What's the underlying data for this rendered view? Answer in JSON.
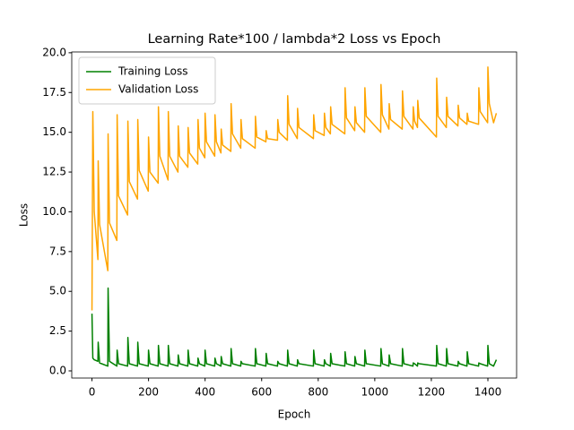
{
  "chart_data": {
    "type": "line",
    "title": "Learning Rate*100 / lambda*2 Loss vs Epoch",
    "x_label": "Epoch",
    "y_label": "Loss",
    "x": [
      0,
      3,
      8,
      21,
      22,
      27,
      56,
      57,
      62,
      88,
      89,
      94,
      126,
      127,
      132,
      161,
      162,
      167,
      199,
      200,
      205,
      234,
      235,
      240,
      269,
      270,
      275,
      304,
      305,
      310,
      339,
      340,
      345,
      374,
      375,
      380,
      399,
      400,
      405,
      434,
      435,
      440,
      456,
      457,
      462,
      491,
      492,
      497,
      526,
      527,
      532,
      577,
      578,
      583,
      615,
      616,
      621,
      656,
      657,
      662,
      691,
      692,
      697,
      726,
      727,
      732,
      783,
      784,
      789,
      821,
      822,
      827,
      843,
      844,
      849,
      894,
      895,
      900,
      929,
      930,
      935,
      964,
      965,
      970,
      1021,
      1022,
      1027,
      1050,
      1051,
      1056,
      1097,
      1098,
      1103,
      1135,
      1136,
      1141,
      1151,
      1152,
      1157,
      1218,
      1219,
      1224,
      1253,
      1254,
      1259,
      1294,
      1295,
      1300,
      1326,
      1327,
      1332,
      1367,
      1368,
      1373,
      1399,
      1400,
      1405,
      1420,
      1430
    ],
    "series": [
      {
        "name": "Training Loss",
        "color": "#008000",
        "values": [
          3.6,
          0.8,
          0.7,
          0.6,
          1.8,
          0.5,
          0.3,
          5.2,
          0.6,
          0.3,
          1.3,
          0.45,
          0.3,
          2.1,
          0.45,
          0.3,
          1.8,
          0.45,
          0.3,
          1.3,
          0.45,
          0.3,
          1.6,
          0.45,
          0.3,
          1.6,
          0.45,
          0.3,
          1.0,
          0.45,
          0.3,
          1.3,
          0.45,
          0.3,
          0.8,
          0.45,
          0.3,
          1.3,
          0.45,
          0.3,
          0.8,
          0.45,
          0.3,
          0.9,
          0.45,
          0.3,
          1.4,
          0.45,
          0.3,
          0.6,
          0.45,
          0.3,
          1.4,
          0.45,
          0.3,
          1.1,
          0.45,
          0.3,
          0.6,
          0.45,
          0.3,
          1.3,
          0.45,
          0.3,
          0.7,
          0.45,
          0.3,
          1.3,
          0.45,
          0.3,
          0.7,
          0.45,
          0.3,
          1.1,
          0.45,
          0.3,
          1.2,
          0.45,
          0.3,
          0.9,
          0.45,
          0.3,
          1.3,
          0.45,
          0.3,
          1.4,
          0.45,
          0.3,
          1.0,
          0.45,
          0.3,
          1.4,
          0.45,
          0.3,
          0.5,
          0.45,
          0.3,
          0.5,
          0.45,
          0.3,
          1.6,
          0.45,
          0.3,
          1.4,
          0.45,
          0.3,
          0.6,
          0.45,
          0.3,
          1.2,
          0.45,
          0.3,
          0.5,
          0.45,
          0.3,
          1.6,
          0.45,
          0.3,
          0.7
        ]
      },
      {
        "name": "Validation Loss",
        "color": "#ffa500",
        "values": [
          3.8,
          16.3,
          10.0,
          7.0,
          13.2,
          9.2,
          6.3,
          14.9,
          9.3,
          8.2,
          16.1,
          11.0,
          9.8,
          15.7,
          11.9,
          10.8,
          15.8,
          12.6,
          11.3,
          14.7,
          12.5,
          11.8,
          16.6,
          13.5,
          12.0,
          16.3,
          13.5,
          12.5,
          15.4,
          13.5,
          12.8,
          15.3,
          13.7,
          13.0,
          15.8,
          14.0,
          13.4,
          16.2,
          14.4,
          13.5,
          16.1,
          14.4,
          13.7,
          15.2,
          14.2,
          13.8,
          16.8,
          14.9,
          14.0,
          15.8,
          14.6,
          14.0,
          16.0,
          14.7,
          14.4,
          15.1,
          14.6,
          14.5,
          15.8,
          15.0,
          14.5,
          17.3,
          15.5,
          14.6,
          16.5,
          15.3,
          14.6,
          16.1,
          15.1,
          14.8,
          16.2,
          15.3,
          14.9,
          16.6,
          15.5,
          14.9,
          17.8,
          15.9,
          15.1,
          16.6,
          15.6,
          15.0,
          17.8,
          16.0,
          15.0,
          18.0,
          16.1,
          15.2,
          16.8,
          15.8,
          15.2,
          17.6,
          16.0,
          15.2,
          16.6,
          15.7,
          15.3,
          17.0,
          15.9,
          14.7,
          18.4,
          16.0,
          15.3,
          17.2,
          16.0,
          15.4,
          16.7,
          15.9,
          15.5,
          16.2,
          15.7,
          15.5,
          17.8,
          16.3,
          15.6,
          19.1,
          16.8,
          15.6,
          16.2
        ]
      }
    ],
    "xlim": [
      -71.5,
      1501.5
    ],
    "xticks": [
      0,
      200,
      400,
      600,
      800,
      1000,
      1200,
      1400
    ],
    "ylim": [
      -0.45,
      20.05
    ],
    "yticks": [
      {
        "value": 0,
        "label": "0.0"
      },
      {
        "value": 2.5,
        "label": "2.5"
      },
      {
        "value": 5,
        "label": "5.0"
      },
      {
        "value": 7.5,
        "label": "7.5"
      },
      {
        "value": 10,
        "label": "10.0"
      },
      {
        "value": 12.5,
        "label": "12.5"
      },
      {
        "value": 15,
        "label": "15.0"
      },
      {
        "value": 17.5,
        "label": "17.5"
      },
      {
        "value": 20,
        "label": "20.0"
      }
    ],
    "grid": false,
    "legend": "upper-left"
  }
}
